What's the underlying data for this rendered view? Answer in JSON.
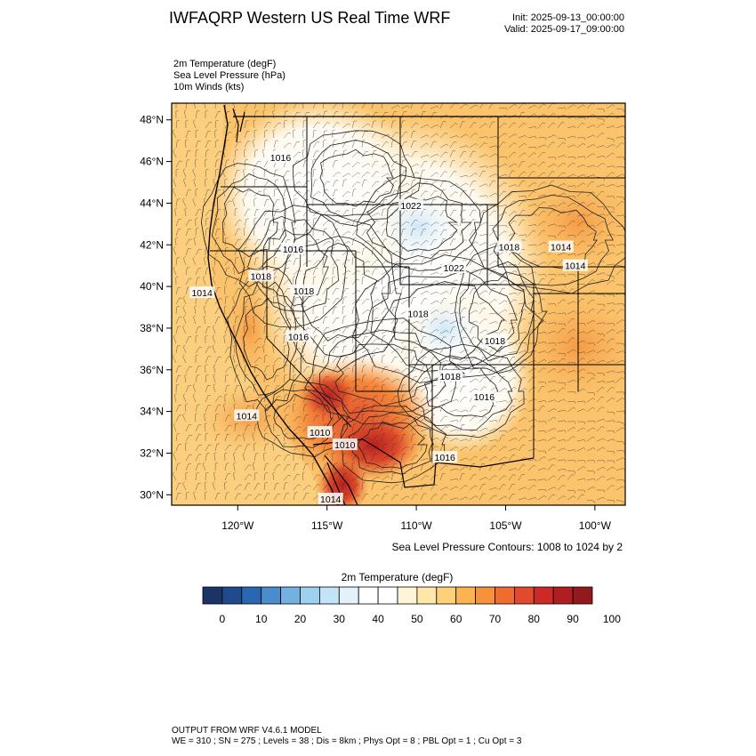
{
  "header": {
    "title": "IWFAQRP Western US Real Time WRF",
    "init": "Init: 2025-09-13_00:00:00",
    "valid": "Valid: 2025-09-17_09:00:00"
  },
  "fields": [
    "2m Temperature   (degF)",
    "Sea Level Pressure   (hPa)",
    "10m Winds   (kts)"
  ],
  "map": {
    "lon_range": [
      -123.7,
      -98.3
    ],
    "lat_range": [
      29.5,
      48.8
    ],
    "lat_ticks": [
      {
        "value": 30,
        "label": "30°N"
      },
      {
        "value": 32,
        "label": "32°N"
      },
      {
        "value": 34,
        "label": "34°N"
      },
      {
        "value": 36,
        "label": "36°N"
      },
      {
        "value": 38,
        "label": "38°N"
      },
      {
        "value": 40,
        "label": "40°N"
      },
      {
        "value": 42,
        "label": "42°N"
      },
      {
        "value": 44,
        "label": "44°N"
      },
      {
        "value": 46,
        "label": "46°N"
      },
      {
        "value": 48,
        "label": "48°N"
      }
    ],
    "lon_ticks": [
      {
        "value": -120,
        "label": "120°W"
      },
      {
        "value": -115,
        "label": "115°W"
      },
      {
        "value": -110,
        "label": "110°W"
      },
      {
        "value": -105,
        "label": "105°W"
      },
      {
        "value": -100,
        "label": "100°W"
      }
    ],
    "pressure_labels": [
      {
        "lon": -117.6,
        "lat": 46.2,
        "text": "1016"
      },
      {
        "lon": -110.3,
        "lat": 43.9,
        "text": "1022"
      },
      {
        "lon": -116.9,
        "lat": 41.8,
        "text": "1016"
      },
      {
        "lon": -104.8,
        "lat": 41.9,
        "text": "1018"
      },
      {
        "lon": -101.9,
        "lat": 41.9,
        "text": "1014"
      },
      {
        "lon": -101.1,
        "lat": 41.0,
        "text": "1014"
      },
      {
        "lon": -107.9,
        "lat": 40.9,
        "text": "1022"
      },
      {
        "lon": -118.7,
        "lat": 40.5,
        "text": "1018"
      },
      {
        "lon": -116.3,
        "lat": 39.8,
        "text": "1018"
      },
      {
        "lon": -122.0,
        "lat": 39.7,
        "text": "1014"
      },
      {
        "lon": -109.9,
        "lat": 38.7,
        "text": "1018"
      },
      {
        "lon": -116.6,
        "lat": 37.6,
        "text": "1016"
      },
      {
        "lon": -105.6,
        "lat": 37.4,
        "text": "1018"
      },
      {
        "lon": -108.1,
        "lat": 35.7,
        "text": "1018"
      },
      {
        "lon": -106.2,
        "lat": 34.7,
        "text": "1016"
      },
      {
        "lon": -119.5,
        "lat": 33.8,
        "text": "1014"
      },
      {
        "lon": -115.4,
        "lat": 33.0,
        "text": "1010"
      },
      {
        "lon": -114.0,
        "lat": 32.4,
        "text": "1010"
      },
      {
        "lon": -108.4,
        "lat": 31.8,
        "text": "1016"
      },
      {
        "lon": -114.8,
        "lat": 29.8,
        "text": "1014"
      }
    ],
    "colors": {
      "land_outline": "#000000",
      "low_temp": "#e3f1fc",
      "high_temp": "#c83b2a"
    }
  },
  "contour_note": "Sea Level Pressure Contours: 1008 to 1024 by 2",
  "colorbar": {
    "title": "2m Temperature   (degF)",
    "colors": [
      "#1c3366",
      "#1f4a8c",
      "#2b66b3",
      "#4a8ccc",
      "#73b2e0",
      "#9fd0ef",
      "#c3e3f6",
      "#e3f1fc",
      "#ffffff",
      "#ffffff",
      "#fff5d6",
      "#fee7a8",
      "#fdd07a",
      "#fbb44f",
      "#f7923a",
      "#ef6b2e",
      "#e24a2c",
      "#cc2a26",
      "#b01e22",
      "#921a1e"
    ],
    "labels": [
      "0",
      "10",
      "20",
      "30",
      "40",
      "50",
      "60",
      "70",
      "80",
      "90",
      "100"
    ]
  },
  "footer": {
    "line1": "OUTPUT FROM WRF V4.6.1 MODEL",
    "line2": "WE = 310 ; SN = 275 ; Levels = 38 ; Dis = 8km ; Phys Opt = 8 ; PBL Opt = 1 ; Cu Opt = 3"
  }
}
